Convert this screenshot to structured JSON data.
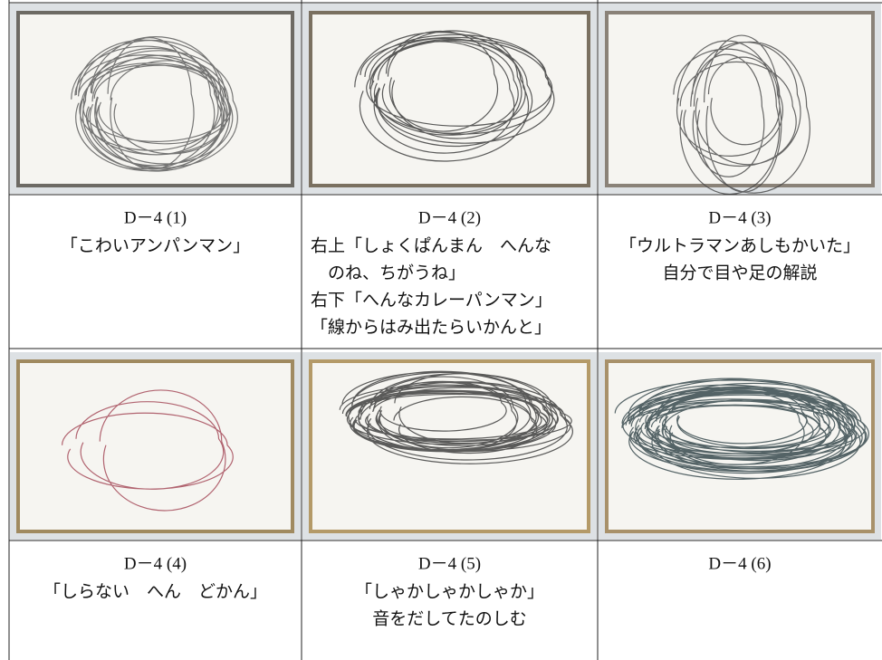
{
  "items": [
    {
      "id": "D－4 (1)",
      "lines": [
        "「こわいアンパンマン」"
      ]
    },
    {
      "id": "D－4 (2)",
      "lines": [
        "右上「しょくぱんまん　へんな",
        "のね、ちがうね」",
        "右下「へんなカレーパンマン」",
        "「線からはみ出たらいかんと」"
      ]
    },
    {
      "id": "D－4 (3)",
      "lines": [
        "「ウルトラマンあしもかいた」",
        "自分で目や足の解説"
      ]
    },
    {
      "id": "D－4 (4)",
      "lines": [
        "「しらない　へん　どかん」"
      ]
    },
    {
      "id": "D－4 (5)",
      "lines": [
        "「しゃかしゃかしゃか」",
        "音をだしてたのしむ"
      ]
    },
    {
      "id": "D－4 (6)",
      "lines": []
    }
  ]
}
